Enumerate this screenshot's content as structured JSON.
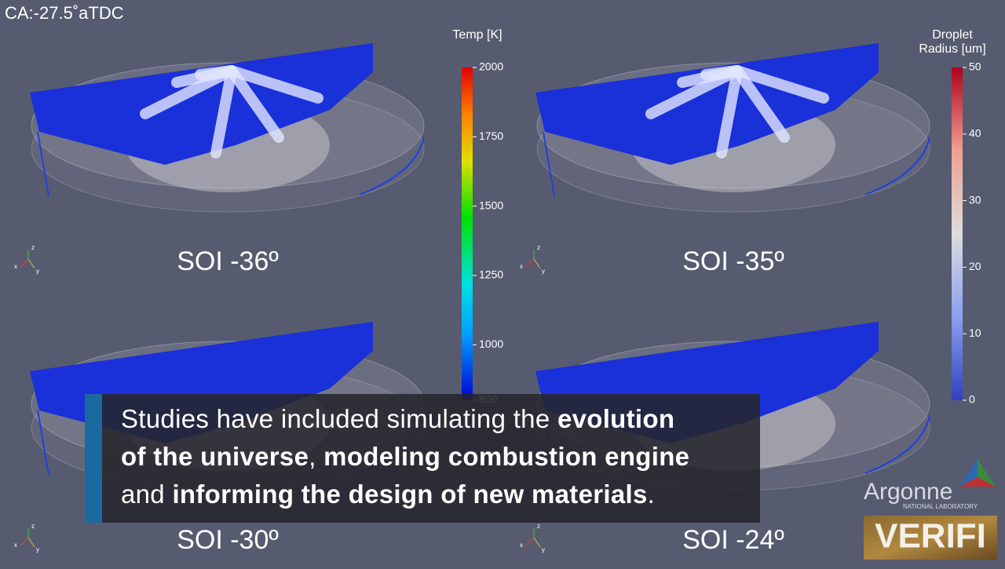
{
  "header": {
    "crank_angle": "CA:-27.5˚aTDC"
  },
  "panels": [
    {
      "label": "SOI -36º"
    },
    {
      "label": "SOI -35º"
    },
    {
      "label": "SOI -30º"
    },
    {
      "label": "SOI -24º"
    }
  ],
  "triad": {
    "x": "x",
    "y": "y",
    "z": "z"
  },
  "colorbars": [
    {
      "title": [
        "Temp [K]"
      ],
      "ticks": [
        2000,
        1750,
        1500,
        1250,
        1000,
        800
      ]
    },
    {
      "title": [
        "Droplet",
        "Radius [um]"
      ],
      "ticks": [
        50,
        40,
        30,
        20,
        10,
        0
      ]
    }
  ],
  "caption": {
    "lines": [
      [
        {
          "text": "Studies have included simulating the ",
          "bold": false
        },
        {
          "text": "evolution",
          "bold": true
        }
      ],
      [
        {
          "text": "of the universe",
          "bold": true
        },
        {
          "text": ", ",
          "bold": false
        },
        {
          "text": "modeling combustion engine",
          "bold": true
        }
      ],
      [
        {
          "text": "and ",
          "bold": false
        },
        {
          "text": "informing the design of new materials",
          "bold": true
        },
        {
          "text": ".",
          "bold": false
        }
      ]
    ]
  },
  "logo": {
    "name": "Argonne",
    "subtitle": "NATIONAL LABORATORY",
    "badge": "VERIFI"
  }
}
